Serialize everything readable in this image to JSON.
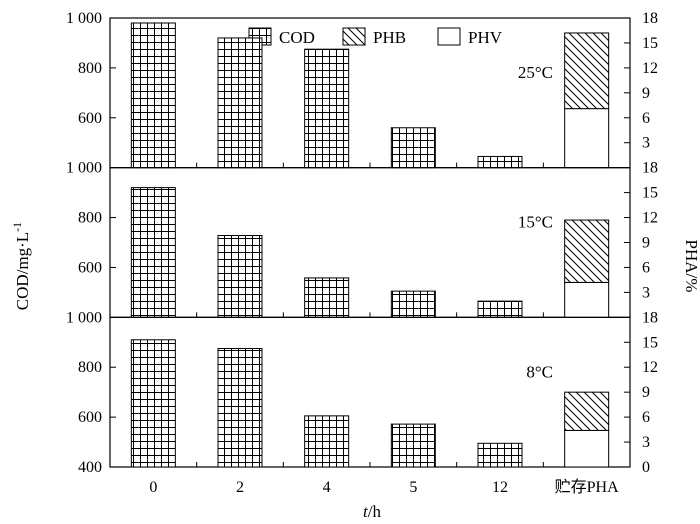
{
  "chart_data": {
    "type": "bar",
    "categories": [
      "0",
      "2",
      "4",
      "5",
      "12",
      "贮存PHA"
    ],
    "xlabel_italic": "t",
    "xlabel_rest": "/h",
    "ylabel_left": "COD/mg·L",
    "ylabel_left_sup": "-1",
    "ylabel_right": "PHA/%",
    "legend": [
      {
        "name": "COD",
        "pattern": "grid"
      },
      {
        "name": "PHB",
        "pattern": "hatch"
      },
      {
        "name": "PHV",
        "pattern": "blank"
      }
    ],
    "panels": [
      {
        "label": "25°C",
        "left_axis": {
          "min": 400,
          "max": 1000,
          "ticks": [
            600,
            800,
            1000
          ],
          "tick_labels": [
            "600",
            "800",
            "1 000"
          ],
          "bottom_label": "1 000"
        },
        "right_axis": {
          "min": 0,
          "max": 18,
          "ticks": [
            3,
            6,
            9,
            12,
            15,
            18
          ],
          "tick_labels": [
            "3",
            "6",
            "9",
            "12",
            "15",
            "18"
          ],
          "bottom_label": "18"
        },
        "cod": [
          980,
          920,
          875,
          560,
          445
        ],
        "phv": 7.1,
        "phb": 9.1
      },
      {
        "label": "15°C",
        "left_axis": {
          "min": 400,
          "max": 1000,
          "ticks": [
            600,
            800
          ],
          "tick_labels": [
            "600",
            "800"
          ],
          "bottom_label": "1 000"
        },
        "right_axis": {
          "min": 0,
          "max": 18,
          "ticks": [
            3,
            6,
            9,
            12,
            15
          ],
          "tick_labels": [
            "3",
            "6",
            "9",
            "12",
            "15"
          ],
          "bottom_label": "18"
        },
        "cod": [
          920,
          728,
          558,
          505,
          465
        ],
        "phv": 4.2,
        "phb": 7.5
      },
      {
        "label": "8°C",
        "left_axis": {
          "min": 400,
          "max": 1000,
          "ticks": [
            600,
            800
          ],
          "tick_labels": [
            "600",
            "800"
          ],
          "bottom_label": "400"
        },
        "right_axis": {
          "min": 0,
          "max": 18,
          "ticks": [
            3,
            6,
            9,
            12,
            15
          ],
          "tick_labels": [
            "3",
            "6",
            "9",
            "12",
            "15"
          ],
          "bottom_label": "0"
        },
        "cod": [
          910,
          875,
          605,
          572,
          495
        ],
        "phv": 4.4,
        "phb": 4.6
      }
    ]
  }
}
